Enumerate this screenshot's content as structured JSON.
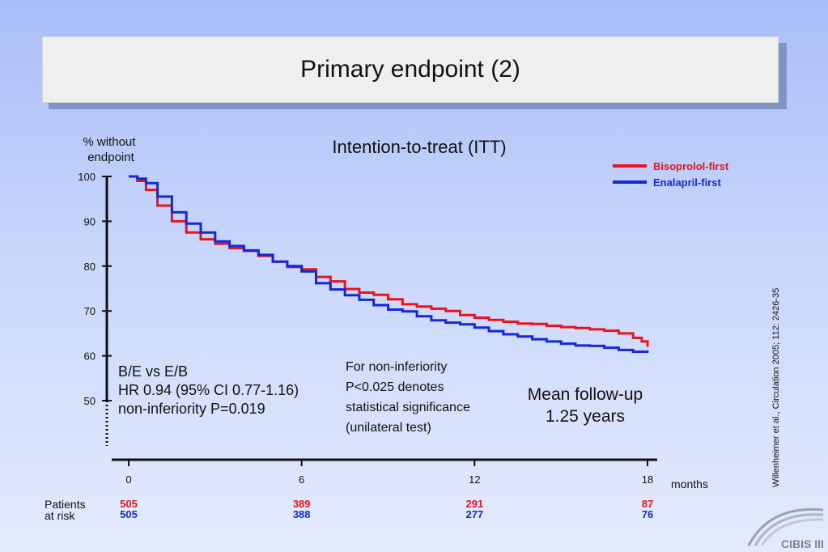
{
  "slide": {
    "title": "Primary endpoint (2)",
    "citation": "Willenheimer et al., Circulation 2005; 112: 2426-35",
    "logo_text": "CIBIS III"
  },
  "notes": {
    "stats_line1": "B/E vs E/B",
    "stats_line2": "HR 0.94 (95% CI 0.77-1.16)",
    "stats_line3": "non-inferiority P=0.019",
    "note_line1": "For non-inferiority",
    "note_line2": "P<0.025 denotes",
    "note_line3": "statistical significance",
    "note_line4": "(unilateral test)",
    "followup_line1": "Mean follow-up",
    "followup_line2": "1.25 years"
  },
  "at_risk": {
    "label_line1": "Patients",
    "label_line2": "at risk"
  },
  "chart_data": {
    "type": "line",
    "title": "Intention-to-treat (ITT)",
    "ylabel": "% without endpoint",
    "xlabel": "months",
    "ylim": [
      50,
      100
    ],
    "xlim": [
      0,
      18
    ],
    "yticks": [
      50,
      60,
      70,
      80,
      90,
      100
    ],
    "xticks": [
      0,
      6,
      12,
      18
    ],
    "legend_position": "top-right",
    "series": [
      {
        "name": "Bisoprolol-first",
        "color": "#e8141c",
        "x": [
          0,
          0.3,
          0.6,
          1,
          1.5,
          2,
          2.5,
          3,
          3.5,
          4,
          4.5,
          5,
          5.5,
          6,
          6.5,
          7,
          7.5,
          8,
          8.5,
          9,
          9.5,
          10,
          10.5,
          11,
          11.5,
          12,
          12.5,
          13,
          13.5,
          14,
          14.5,
          15,
          15.5,
          16,
          16.5,
          17,
          17.5,
          17.8,
          18
        ],
        "values": [
          100,
          99,
          97,
          93.5,
          90,
          87.5,
          86,
          85,
          84,
          83.4,
          82.3,
          81,
          79.8,
          79.3,
          77.6,
          76.6,
          74.9,
          74.1,
          73.6,
          72.6,
          71.5,
          71,
          70.5,
          70,
          69.1,
          68.5,
          68,
          67.6,
          67.2,
          67.1,
          66.7,
          66.4,
          66.2,
          65.9,
          65.6,
          65,
          64,
          63.2,
          62
        ]
      },
      {
        "name": "Enalapril-first",
        "color": "#1428d4",
        "x": [
          0,
          0.3,
          0.6,
          1,
          1.5,
          2,
          2.5,
          3,
          3.5,
          4,
          4.5,
          5,
          5.5,
          6,
          6.5,
          7,
          7.5,
          8,
          8.5,
          9,
          9.5,
          10,
          10.5,
          11,
          11.5,
          12,
          12.5,
          13,
          13.5,
          14,
          14.5,
          15,
          15.5,
          16,
          16.5,
          17,
          17.5,
          18
        ],
        "values": [
          100,
          99.5,
          98.5,
          95.5,
          92,
          89.5,
          87.5,
          85.5,
          84.5,
          83.5,
          82.5,
          81,
          80,
          78.8,
          76.2,
          74.8,
          73.5,
          72.5,
          71.3,
          70.3,
          69.9,
          68.8,
          67.9,
          67.4,
          67,
          66.3,
          65.5,
          64.8,
          64.3,
          63.7,
          63.2,
          62.7,
          62.3,
          62.2,
          61.8,
          61.3,
          60.9,
          60.7
        ]
      }
    ],
    "at_risk": {
      "x": [
        0,
        6,
        12,
        18
      ],
      "bisoprolol_first": [
        "505",
        "389",
        "291",
        "87"
      ],
      "enalapril_first": [
        "505",
        "388",
        "277",
        "76"
      ]
    }
  }
}
